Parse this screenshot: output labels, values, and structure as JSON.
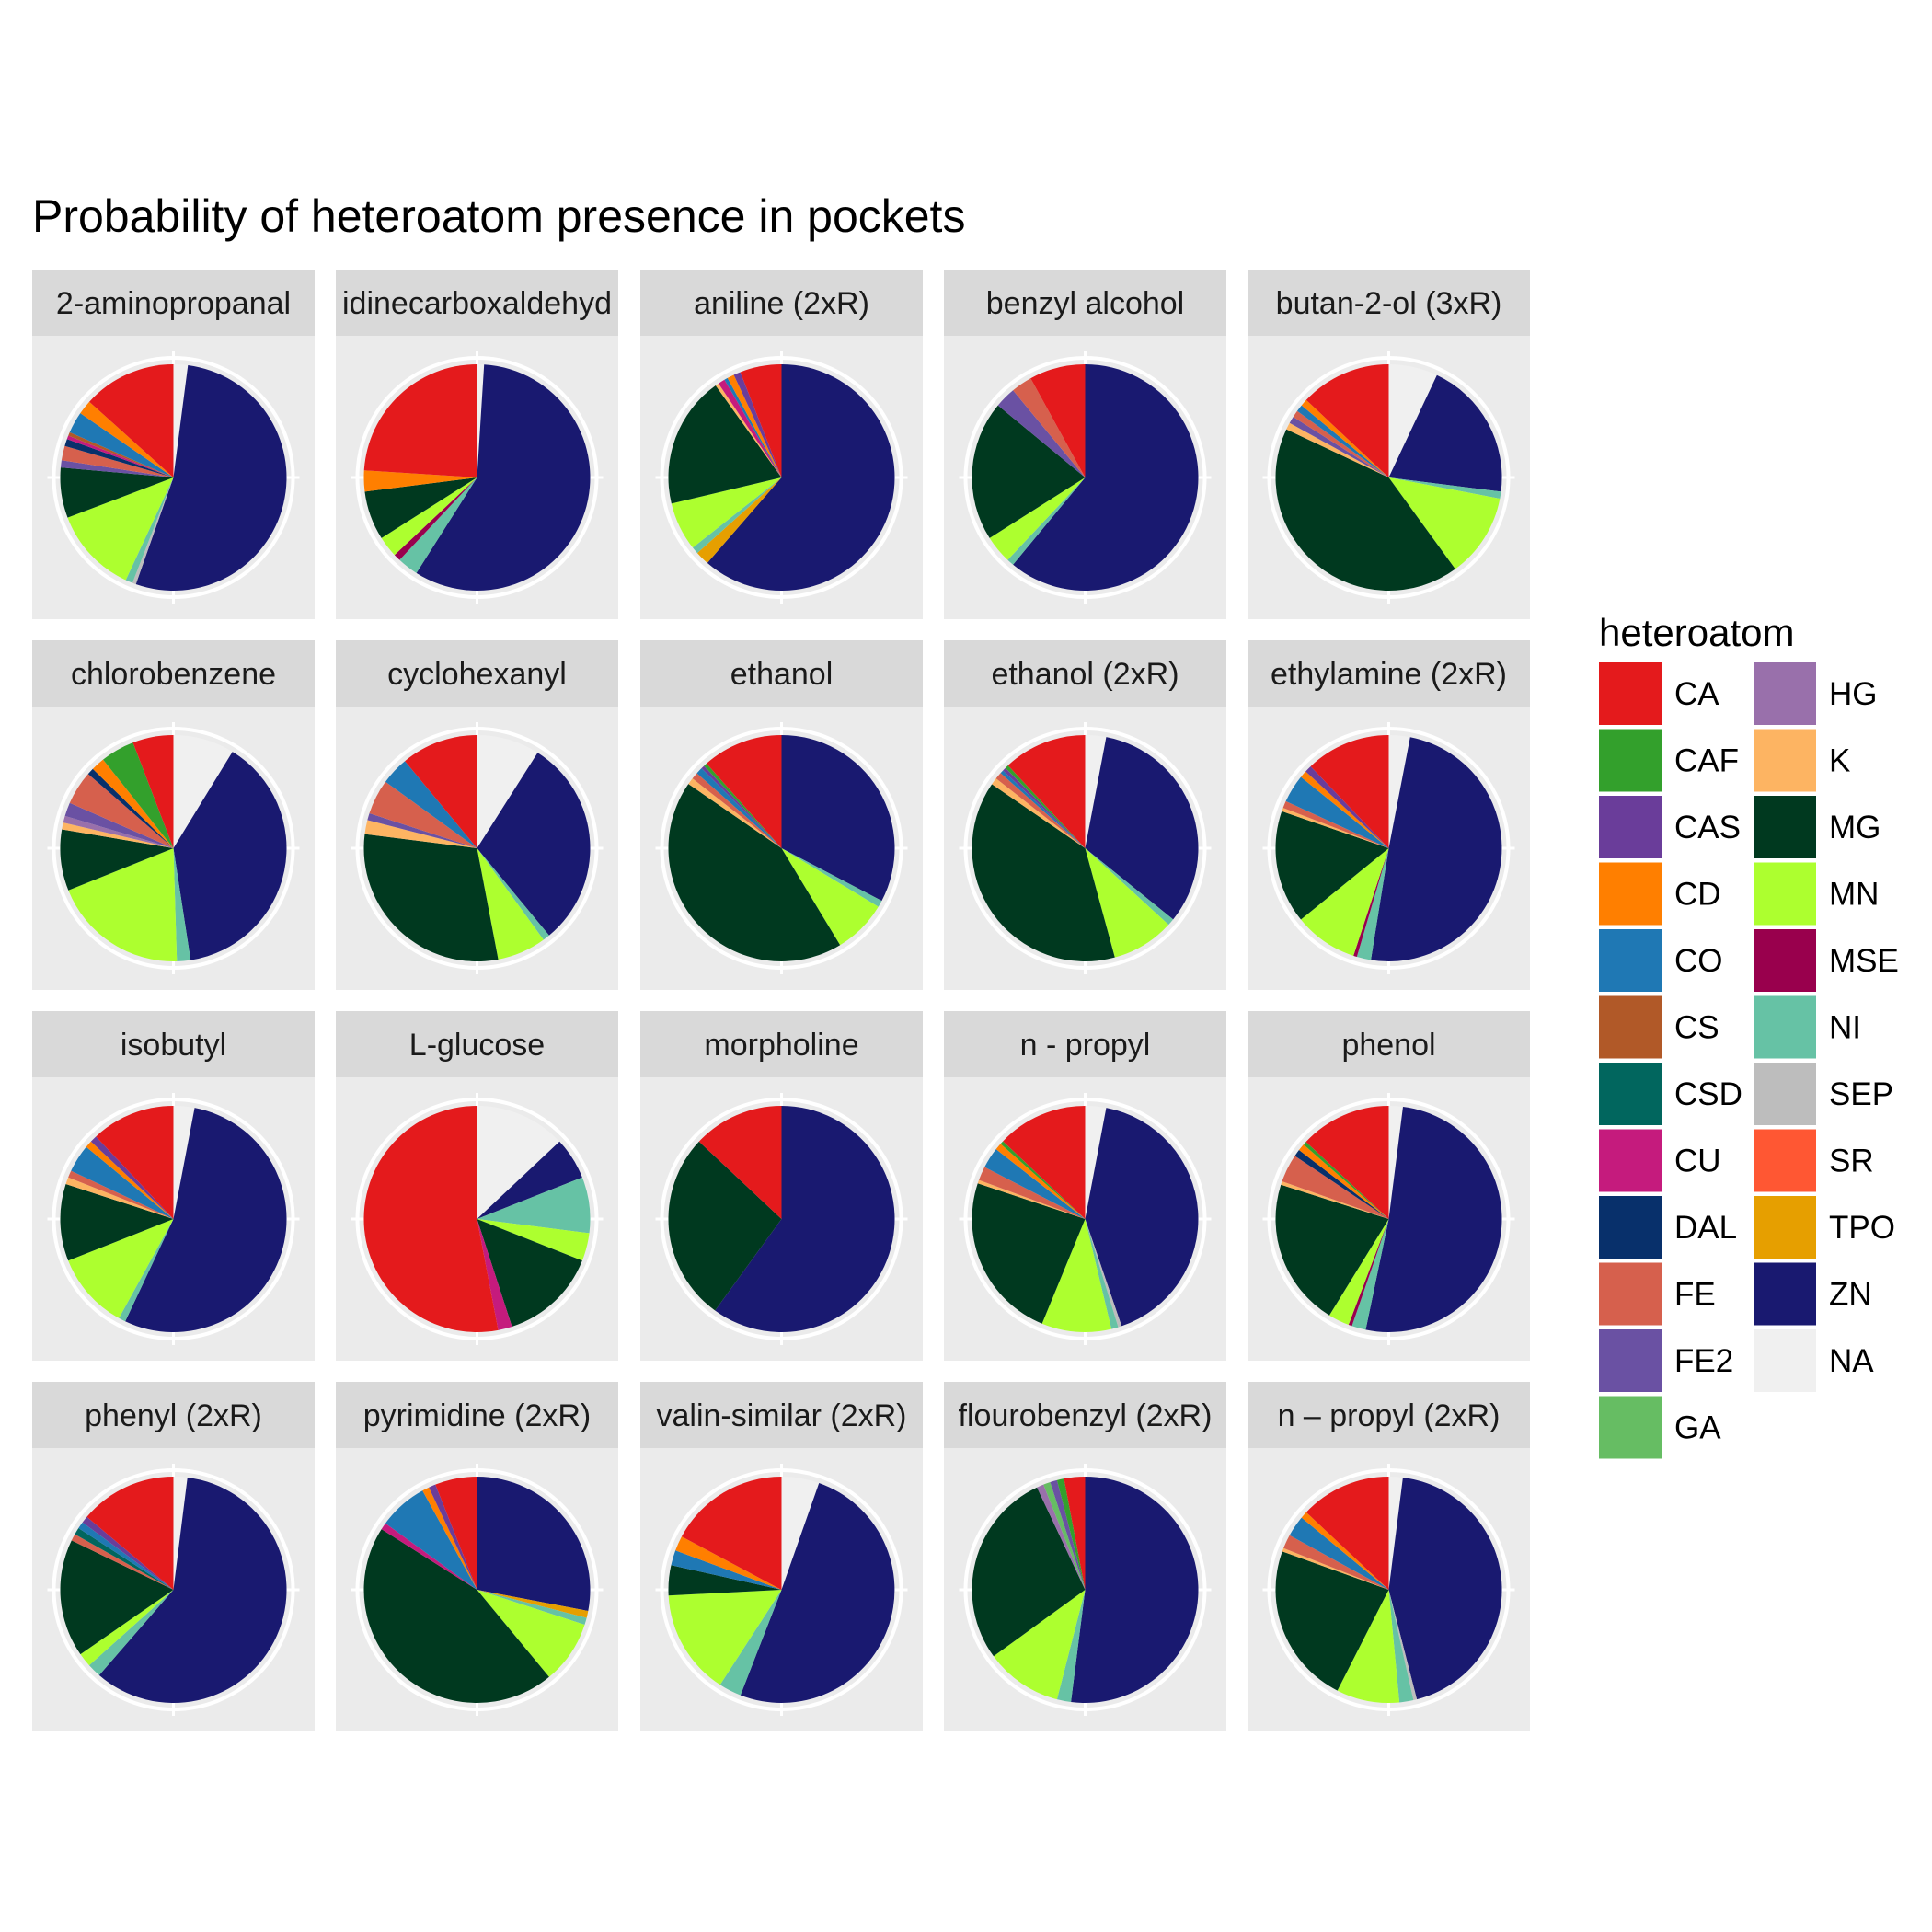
{
  "chart_data": {
    "type": "pie",
    "title": "Probability of heteroatom presence in pockets",
    "legend": {
      "title": "heteroatom",
      "position": "right",
      "items": [
        {
          "name": "CA",
          "color": "#E41A1C"
        },
        {
          "name": "CAF",
          "color": "#33A02C"
        },
        {
          "name": "CAS",
          "color": "#6A3D9A"
        },
        {
          "name": "CD",
          "color": "#FF7F00"
        },
        {
          "name": "CO",
          "color": "#1F78B4"
        },
        {
          "name": "CS",
          "color": "#B15928"
        },
        {
          "name": "CSD",
          "color": "#01665E"
        },
        {
          "name": "CU",
          "color": "#C51B7D"
        },
        {
          "name": "DAL",
          "color": "#08306B"
        },
        {
          "name": "FE",
          "color": "#D6604D"
        },
        {
          "name": "FE2",
          "color": "#6A51A3"
        },
        {
          "name": "GA",
          "color": "#66BD63"
        },
        {
          "name": "HG",
          "color": "#9970AB"
        },
        {
          "name": "K",
          "color": "#FDB462"
        },
        {
          "name": "MG",
          "color": "#00391F"
        },
        {
          "name": "MN",
          "color": "#ADFF2F"
        },
        {
          "name": "MSE",
          "color": "#99004D"
        },
        {
          "name": "NI",
          "color": "#66C2A5"
        },
        {
          "name": "SEP",
          "color": "#BDBDBD"
        },
        {
          "name": "SR",
          "color": "#FF5733"
        },
        {
          "name": "TPO",
          "color": "#E69F00"
        },
        {
          "name": "ZN",
          "color": "#191970"
        },
        {
          "name": "NA",
          "color": "#F0F0F0"
        }
      ]
    },
    "panels": [
      {
        "title": "2-aminopropanal",
        "slices": {
          "NA": 0.02,
          "ZN": 0.52,
          "NI": 0.01,
          "SEP": 0.005,
          "CU": 0.005,
          "MN": 0.12,
          "MG": 0.07,
          "FE2": 0.01,
          "FE": 0.02,
          "CS": 0.005,
          "DAL": 0.01,
          "CO": 0.03,
          "CD": 0.02,
          "CA": 0.13
        }
      },
      {
        "title": "idinecarboxaldehyd",
        "slices": {
          "NA": 0.01,
          "ZN": 0.58,
          "NI": 0.03,
          "MSE": 0.01,
          "MN": 0.03,
          "MG": 0.07,
          "CD": 0.03,
          "CA": 0.24
        }
      },
      {
        "title": "aniline (2xR)",
        "slices": {
          "ZN": 0.62,
          "TPO": 0.02,
          "NI": 0.01,
          "MN": 0.07,
          "MG": 0.19,
          "K": 0.005,
          "CO": 0.005,
          "CD": 0.01,
          "CAS": 0.01,
          "CU": 0.01,
          "CA": 0.06
        }
      },
      {
        "title": "benzyl alcohol",
        "slices": {
          "ZN": 0.61,
          "NI": 0.01,
          "MN": 0.04,
          "MG": 0.2,
          "FE2": 0.03,
          "FE": 0.03,
          "CA": 0.08
        }
      },
      {
        "title": "butan-2-ol (3xR)",
        "slices": {
          "NA": 0.07,
          "ZN": 0.2,
          "NI": 0.01,
          "MN": 0.12,
          "MG": 0.42,
          "K": 0.01,
          "CD": 0.01,
          "FE": 0.01,
          "FE2": 0.01,
          "CO": 0.01,
          "CA": 0.13
        }
      },
      {
        "title": "chlorobenzene",
        "slices": {
          "NA": 0.09,
          "ZN": 0.4,
          "NI": 0.02,
          "MN": 0.2,
          "MG": 0.09,
          "K": 0.01,
          "FE2": 0.02,
          "HG": 0.01,
          "FE": 0.05,
          "DAL": 0.01,
          "CD": 0.02,
          "CAF": 0.05,
          "CA": 0.06
        }
      },
      {
        "title": "cyclohexanyl",
        "slices": {
          "NA": 0.09,
          "ZN": 0.3,
          "NI": 0.01,
          "MN": 0.07,
          "MG": 0.3,
          "K": 0.02,
          "FE2": 0.01,
          "FE": 0.05,
          "CO": 0.04,
          "CA": 0.11
        }
      },
      {
        "title": "ethanol",
        "slices": {
          "ZN": 0.34,
          "NI": 0.01,
          "MN": 0.08,
          "MG": 0.45,
          "K": 0.01,
          "FE": 0.01,
          "CAS": 0.005,
          "CO": 0.01,
          "CAF": 0.005,
          "CA": 0.12
        }
      },
      {
        "title": "ethanol (2xR)",
        "slices": {
          "NA": 0.03,
          "ZN": 0.33,
          "NI": 0.01,
          "MN": 0.09,
          "MG": 0.39,
          "K": 0.01,
          "FE": 0.01,
          "CAS": 0.005,
          "CO": 0.005,
          "CAF": 0.005,
          "CA": 0.12
        }
      },
      {
        "title": "ethylamine (2xR)",
        "slices": {
          "NA": 0.03,
          "ZN": 0.49,
          "NI": 0.02,
          "MSE": 0.005,
          "MN": 0.09,
          "MG": 0.16,
          "K": 0.005,
          "FE": 0.01,
          "CAS": 0.01,
          "CO": 0.04,
          "CD": 0.01,
          "CA": 0.12
        }
      },
      {
        "title": "isobutyl",
        "slices": {
          "NA": 0.03,
          "ZN": 0.54,
          "NI": 0.01,
          "MN": 0.11,
          "MG": 0.11,
          "K": 0.01,
          "FE": 0.01,
          "CAS": 0.01,
          "CO": 0.04,
          "CD": 0.01,
          "CA": 0.12
        }
      },
      {
        "title": "L-glucose",
        "slices": {
          "NA": 0.13,
          "ZN": 0.06,
          "NI": 0.08,
          "MN": 0.04,
          "MG": 0.14,
          "CU": 0.02,
          "CA": 0.53
        }
      },
      {
        "title": "morpholine",
        "slices": {
          "ZN": 0.6,
          "MG": 0.27,
          "CA": 0.13
        }
      },
      {
        "title": "n - propyl",
        "slices": {
          "NA": 0.03,
          "ZN": 0.42,
          "NI": 0.01,
          "SEP": 0.005,
          "MN": 0.1,
          "MG": 0.24,
          "K": 0.005,
          "FE": 0.02,
          "CO": 0.03,
          "CD": 0.01,
          "CAF": 0.005,
          "CA": 0.13
        }
      },
      {
        "title": "phenol",
        "slices": {
          "NA": 0.02,
          "ZN": 0.51,
          "NI": 0.02,
          "MN": 0.03,
          "MSE": 0.005,
          "MG": 0.21,
          "K": 0.005,
          "FE": 0.04,
          "DAL": 0.01,
          "CD": 0.01,
          "CAF": 0.005,
          "CA": 0.13
        }
      },
      {
        "title": "phenyl (2xR)",
        "slices": {
          "NA": 0.02,
          "ZN": 0.6,
          "NI": 0.02,
          "MN": 0.02,
          "MG": 0.17,
          "FE": 0.01,
          "CAS": 0.01,
          "CO": 0.01,
          "CSD": 0.01,
          "CA": 0.14
        }
      },
      {
        "title": "pyrimidine (2xR)",
        "slices": {
          "ZN": 0.28,
          "TPO": 0.01,
          "NI": 0.01,
          "MN": 0.09,
          "MG": 0.45,
          "CU": 0.01,
          "CAS": 0.01,
          "CO": 0.07,
          "CD": 0.01,
          "CA": 0.06
        }
      },
      {
        "title": "valin-similar (2xR)",
        "slices": {
          "NA": 0.05,
          "ZN": 0.47,
          "NI": 0.03,
          "MN": 0.14,
          "MG": 0.04,
          "CO": 0.02,
          "CD": 0.02,
          "CA": 0.16
        }
      },
      {
        "title": "flourobenzyl (2xR)",
        "slices": {
          "ZN": 0.52,
          "NI": 0.02,
          "MN": 0.11,
          "MG": 0.28,
          "FE2": 0.01,
          "HG": 0.01,
          "GA": 0.01,
          "CAF": 0.01,
          "CA": 0.03
        }
      },
      {
        "title": "n – propyl (2xR)",
        "slices": {
          "NA": 0.02,
          "ZN": 0.44,
          "NI": 0.02,
          "SEP": 0.005,
          "MN": 0.09,
          "MG": 0.23,
          "K": 0.005,
          "FE": 0.02,
          "CO": 0.03,
          "CD": 0.01,
          "CA": 0.13
        }
      }
    ]
  }
}
